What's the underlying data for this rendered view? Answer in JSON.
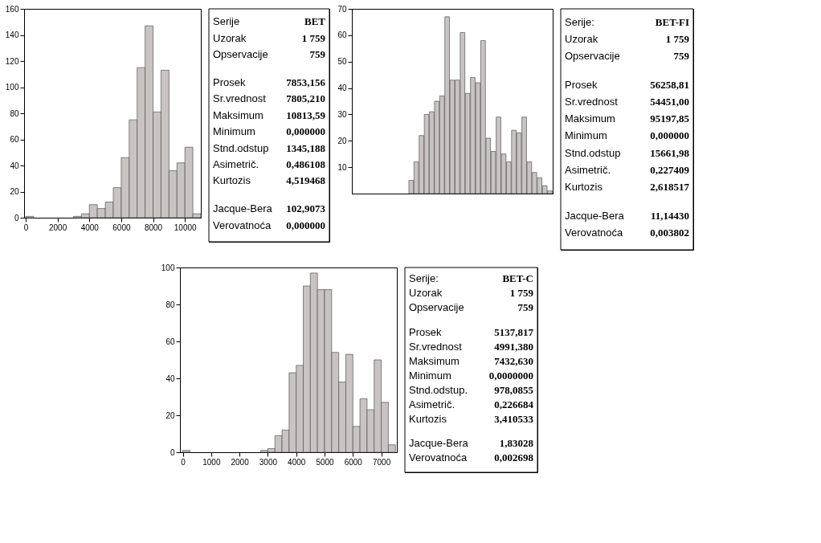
{
  "chart_data": [
    {
      "type": "histogram",
      "bins": [
        0,
        500,
        1000,
        1500,
        2000,
        2500,
        3000,
        3500,
        4000,
        4500,
        5000,
        5500,
        6000,
        6500,
        7000,
        7500,
        8000,
        8500,
        9000,
        9500,
        10000,
        10500,
        11000
      ],
      "values": [
        1,
        0,
        0,
        0,
        0,
        0,
        1,
        3,
        10,
        7,
        12,
        23,
        46,
        75,
        115,
        147,
        81,
        113,
        36,
        42,
        54,
        3
      ],
      "color": "#c8c4c4",
      "xlim": [
        -100,
        11000
      ],
      "xticks": [
        0,
        2000,
        4000,
        6000,
        8000,
        10000
      ],
      "ylim": [
        0,
        160
      ],
      "yticks": [
        0,
        20,
        40,
        60,
        80,
        100,
        120,
        140,
        160
      ],
      "grid": false
    },
    {
      "type": "other",
      "annotations": [
        "Serije BET",
        "Uzorak 1 759",
        "Opservacije 759",
        "Prosek 7853,156",
        "Sr.vrednost 7805,210",
        "Maksimum 10813,59",
        "Minimum 0,000000",
        "Stnd.odstup 1345,188",
        "Asimetrič. 0,486108",
        "Kurtozis 4,519468",
        "Jacque-Bera 102,9073",
        "Verovatnoća 0,000000"
      ]
    },
    {
      "type": "bar",
      "categories": [
        null,
        null,
        null,
        null,
        null,
        null,
        null,
        null,
        null,
        null,
        null,
        null,
        null,
        null,
        null,
        null,
        null,
        null,
        null,
        null,
        null,
        null,
        null,
        null,
        null,
        null,
        null,
        null,
        null,
        null,
        null,
        null,
        null,
        null,
        null,
        null,
        null,
        null,
        null
      ],
      "values": [
        null,
        null,
        null,
        null,
        null,
        null,
        null,
        null,
        null,
        null,
        null,
        5,
        12,
        22,
        30,
        31,
        35,
        37,
        67,
        43,
        43,
        61,
        38,
        44,
        42,
        58,
        21,
        16,
        29,
        15,
        12,
        24,
        23,
        29,
        12,
        8,
        6,
        3,
        1
      ],
      "color": "#c8c4c4",
      "ylim": [
        0,
        70
      ],
      "yticks": [
        10,
        20,
        30,
        40,
        50,
        60,
        70
      ],
      "tick_labels": "y",
      "grid": false
    },
    {
      "type": "other",
      "annotations": [
        "Serije: BET-FI",
        "Uzorak 1 759",
        "Opservacije 759",
        "Prosek 56258,81",
        "Sr.vrednost 54451,00",
        "Maksimum 95197,85",
        "Minimum 0,000000",
        "Stnd.odstup 15661,98",
        "Asimetrič. 0,227409",
        "Kurtozis 2,618517",
        "Jacque-Bera 11,14430",
        "Verovatnoća 0,003802"
      ]
    },
    {
      "type": "histogram",
      "bins": [
        0,
        250,
        500,
        750,
        1000,
        1250,
        1500,
        1750,
        2000,
        2250,
        2500,
        2750,
        3000,
        3250,
        3500,
        3750,
        4000,
        4250,
        4500,
        4750,
        5000,
        5250,
        5500,
        5750,
        6000,
        6250,
        6500,
        6750,
        7000,
        7250,
        7500
      ],
      "values": [
        1,
        0,
        0,
        0,
        0,
        0,
        0,
        0,
        0,
        0,
        0,
        1,
        2,
        9,
        12,
        43,
        47,
        90,
        97,
        88,
        88,
        54,
        38,
        53,
        14,
        29,
        23,
        50,
        27,
        4
      ],
      "color": "#c8c4c4",
      "xlim": [
        -100,
        7550
      ],
      "xticks": [
        0,
        1000,
        2000,
        3000,
        4000,
        5000,
        6000,
        7000
      ],
      "ylim": [
        0,
        100
      ],
      "yticks": [
        0,
        20,
        40,
        60,
        80,
        100
      ],
      "grid": false
    },
    {
      "type": "other",
      "annotations": [
        "Serije: BET-C",
        "Uzorak 1 759",
        "Opservacije 759",
        "Prosek 5137,817",
        "Sr.vrednost 4991,380",
        "Maksimum 7432,630",
        "Minimum 0,0000000",
        "Stnd.odstup. 978,0855",
        "Asimetrič. 0,226684",
        "Kurtozis 3,410533",
        "Jacque-Bera 1,83028",
        "Verovatnoća 0,002698"
      ]
    }
  ]
}
